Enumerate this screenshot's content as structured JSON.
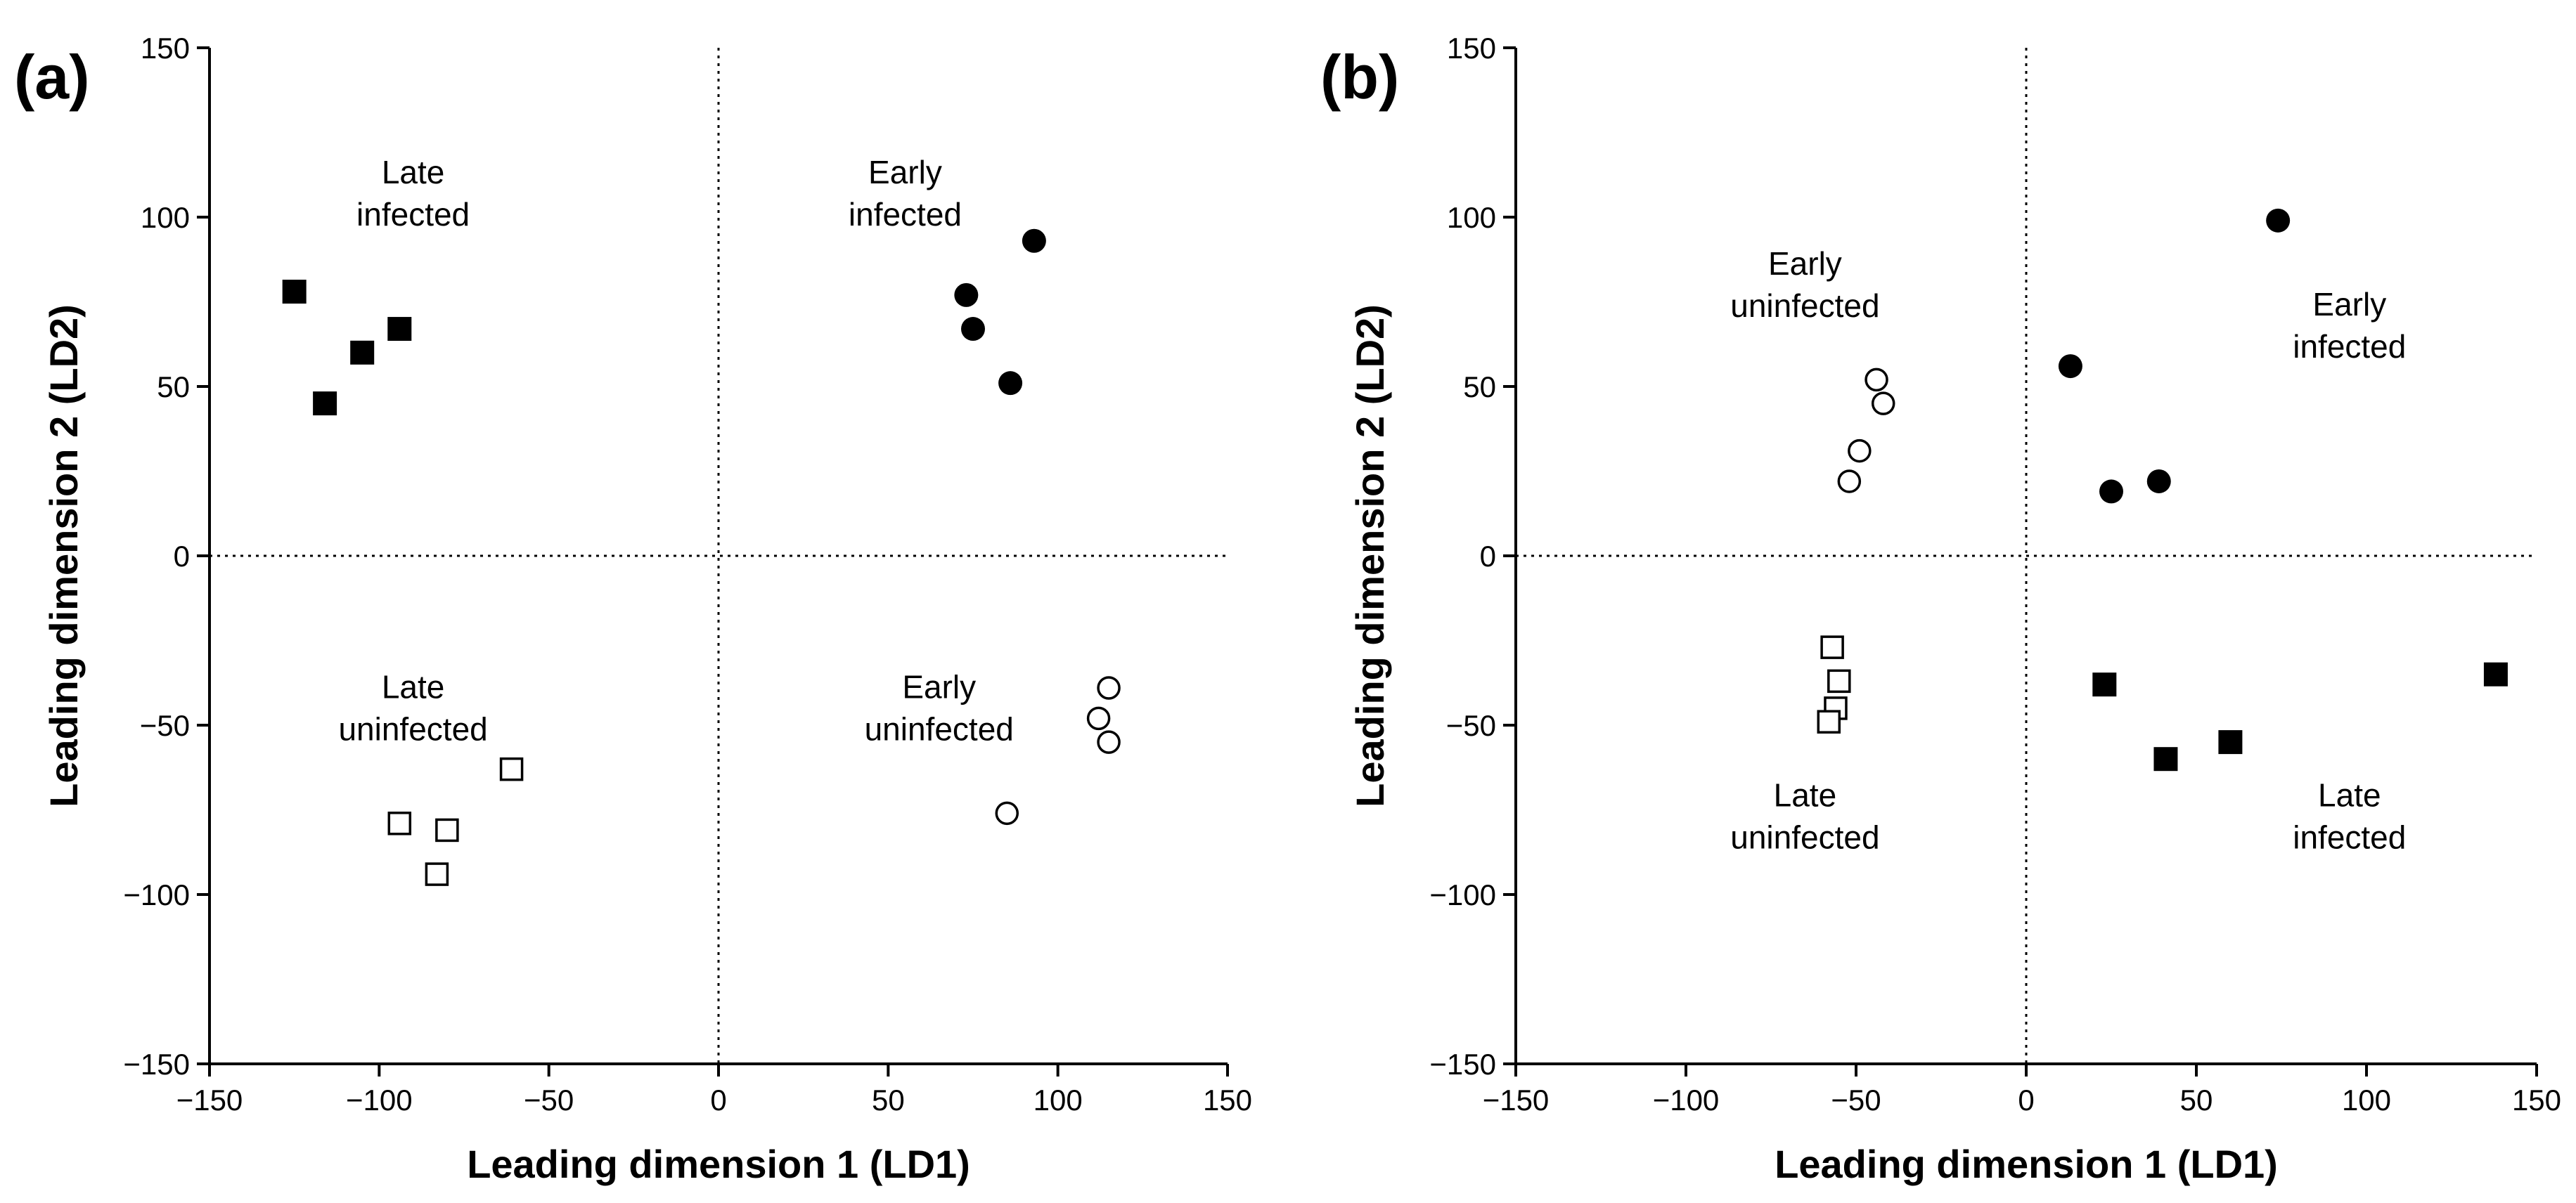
{
  "chart_data": [
    {
      "type": "scatter",
      "panel_label": "(a)",
      "xlabel": "Leading dimension 1 (LD1)",
      "ylabel": "Leading dimension 2 (LD2)",
      "xlim": [
        -150,
        150
      ],
      "ylim": [
        -150,
        150
      ],
      "ticks": [
        -150,
        -100,
        -50,
        0,
        50,
        100,
        150
      ],
      "tick_labels": [
        "−150",
        "−100",
        "−50",
        "0",
        "50",
        "100",
        "150"
      ],
      "grid": false,
      "zero_lines": "dotted",
      "series": [
        {
          "name": "Late infected",
          "marker": "filled-square",
          "points": [
            [
              -125,
              78
            ],
            [
              -116,
              45
            ],
            [
              -105,
              60
            ],
            [
              -94,
              67
            ]
          ]
        },
        {
          "name": "Early infected",
          "marker": "filled-circle",
          "points": [
            [
              73,
              77
            ],
            [
              75,
              67
            ],
            [
              86,
              51
            ],
            [
              93,
              93
            ]
          ]
        },
        {
          "name": "Late uninfected",
          "marker": "open-square",
          "points": [
            [
              -94,
              -79
            ],
            [
              -80,
              -81
            ],
            [
              -83,
              -94
            ],
            [
              -61,
              -63
            ]
          ]
        },
        {
          "name": "Early uninfected",
          "marker": "open-circle",
          "points": [
            [
              85,
              -76
            ],
            [
              112,
              -48
            ],
            [
              115,
              -39
            ],
            [
              115,
              -55
            ]
          ]
        }
      ],
      "annotations": [
        {
          "lines": [
            "Late",
            "infected"
          ],
          "x": -90,
          "y": 110
        },
        {
          "lines": [
            "Early",
            "infected"
          ],
          "x": 55,
          "y": 110
        },
        {
          "lines": [
            "Late",
            "uninfected"
          ],
          "x": -90,
          "y": -42
        },
        {
          "lines": [
            "Early",
            "uninfected"
          ],
          "x": 65,
          "y": -42
        }
      ]
    },
    {
      "type": "scatter",
      "panel_label": "(b)",
      "xlabel": "Leading dimension 1 (LD1)",
      "ylabel": "Leading dimension 2 (LD2)",
      "xlim": [
        -150,
        150
      ],
      "ylim": [
        -150,
        150
      ],
      "ticks": [
        -150,
        -100,
        -50,
        0,
        50,
        100,
        150
      ],
      "tick_labels": [
        "−150",
        "−100",
        "−50",
        "0",
        "50",
        "100",
        "150"
      ],
      "grid": false,
      "zero_lines": "dotted",
      "series": [
        {
          "name": "Early uninfected",
          "marker": "open-circle",
          "points": [
            [
              -44,
              52
            ],
            [
              -42,
              45
            ],
            [
              -49,
              31
            ],
            [
              -52,
              22
            ]
          ]
        },
        {
          "name": "Early infected",
          "marker": "filled-circle",
          "points": [
            [
              13,
              56
            ],
            [
              25,
              19
            ],
            [
              39,
              22
            ],
            [
              74,
              99
            ]
          ]
        },
        {
          "name": "Late uninfected",
          "marker": "open-square",
          "points": [
            [
              -57,
              -27
            ],
            [
              -55,
              -37
            ],
            [
              -56,
              -45
            ],
            [
              -58,
              -49
            ]
          ]
        },
        {
          "name": "Late infected",
          "marker": "filled-square",
          "points": [
            [
              23,
              -38
            ],
            [
              41,
              -60
            ],
            [
              60,
              -55
            ],
            [
              138,
              -35
            ]
          ]
        }
      ],
      "annotations": [
        {
          "lines": [
            "Early",
            "uninfected"
          ],
          "x": -65,
          "y": 83
        },
        {
          "lines": [
            "Early",
            "infected"
          ],
          "x": 95,
          "y": 71
        },
        {
          "lines": [
            "Late",
            "uninfected"
          ],
          "x": -65,
          "y": -74
        },
        {
          "lines": [
            "Late",
            "infected"
          ],
          "x": 95,
          "y": -74
        }
      ]
    }
  ]
}
